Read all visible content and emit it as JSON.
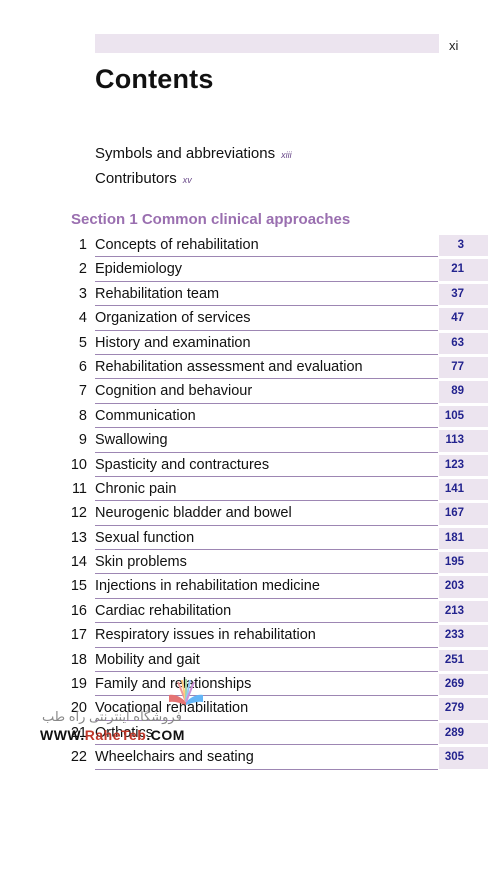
{
  "header": {
    "page_number": "xi"
  },
  "title": "Contents",
  "front_matter": [
    {
      "label": "Symbols and abbreviations",
      "page": "xiii"
    },
    {
      "label": "Contributors",
      "page": "xv"
    }
  ],
  "section": {
    "heading": "Section 1  Common clinical approaches"
  },
  "chapters": [
    {
      "num": "1",
      "title": "Concepts of rehabilitation",
      "page": "3"
    },
    {
      "num": "2",
      "title": "Epidemiology",
      "page": "21"
    },
    {
      "num": "3",
      "title": "Rehabilitation team",
      "page": "37"
    },
    {
      "num": "4",
      "title": "Organization of services",
      "page": "47"
    },
    {
      "num": "5",
      "title": "History and examination",
      "page": "63"
    },
    {
      "num": "6",
      "title": "Rehabilitation assessment and evaluation",
      "page": "77"
    },
    {
      "num": "7",
      "title": "Cognition and behaviour",
      "page": "89"
    },
    {
      "num": "8",
      "title": "Communication",
      "page": "105"
    },
    {
      "num": "9",
      "title": "Swallowing",
      "page": "113"
    },
    {
      "num": "10",
      "title": "Spasticity and contractures",
      "page": "123"
    },
    {
      "num": "11",
      "title": "Chronic pain",
      "page": "141"
    },
    {
      "num": "12",
      "title": "Neurogenic bladder and bowel",
      "page": "167"
    },
    {
      "num": "13",
      "title": "Sexual function",
      "page": "181"
    },
    {
      "num": "14",
      "title": "Skin problems",
      "page": "195"
    },
    {
      "num": "15",
      "title": "Injections in rehabilitation medicine",
      "page": "203"
    },
    {
      "num": "16",
      "title": "Cardiac rehabilitation",
      "page": "213"
    },
    {
      "num": "17",
      "title": "Respiratory issues in rehabilitation",
      "page": "233"
    },
    {
      "num": "18",
      "title": "Mobility and gait",
      "page": "251"
    },
    {
      "num": "19",
      "title": "Family and relationships",
      "page": "269"
    },
    {
      "num": "20",
      "title": "Vocational rehabilitation",
      "page": "279"
    },
    {
      "num": "21",
      "title": "Orthotics",
      "page": "289"
    },
    {
      "num": "22",
      "title": "Wheelchairs and seating",
      "page": "305"
    }
  ],
  "watermark": {
    "text_fa": "فروشگاه اینترنتی راه طب",
    "url_prefix": "WWW.",
    "url_brand": "RaheTeb",
    "url_suffix": ".COM"
  },
  "colors": {
    "accent_purple": "#9a6fb0",
    "rule_line": "#9d86b3",
    "page_box": "#ece4ef",
    "page_number_blue": "#23238e"
  }
}
